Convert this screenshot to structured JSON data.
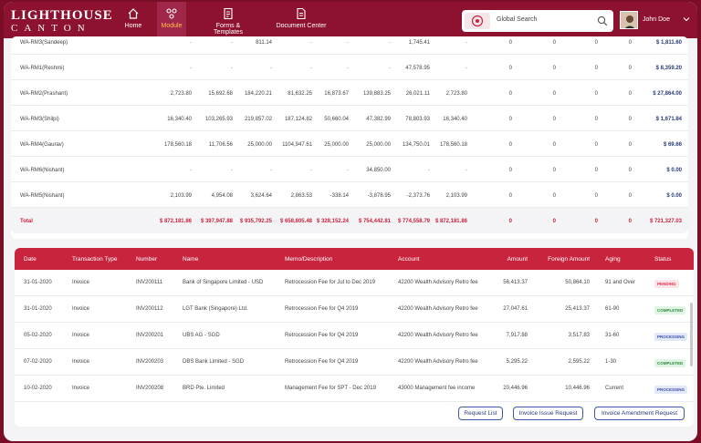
{
  "logo": {
    "line1": "LIGHTHOUSE",
    "line2": "CANTON"
  },
  "nav": [
    {
      "label": "Home",
      "icon": "home-icon"
    },
    {
      "label": "Module",
      "icon": "module-icon"
    },
    {
      "label": "Forms & Templates",
      "icon": "forms-icon"
    },
    {
      "label": "Document Center",
      "icon": "document-icon"
    }
  ],
  "search": {
    "placeholder": "Global Search"
  },
  "user": {
    "name": "John Doe"
  },
  "colors": {
    "brand": "#8c1230",
    "accent": "#c9243e",
    "link": "#2a3c7a"
  },
  "rm_table": {
    "rows": [
      {
        "name": "WA-RM3(Sandeep)",
        "cells": [
          "-",
          "-",
          "811.14",
          "-",
          "-",
          "-",
          "1,745.41",
          "-",
          "0",
          "0",
          "0",
          "0",
          "$ 1,811.60"
        ]
      },
      {
        "name": "WA-RM1(Reshmi)",
        "cells": [
          "-",
          "-",
          "-",
          "-",
          "-",
          "-",
          "47,578.95",
          "-",
          "0",
          "0",
          "0",
          "0",
          "$ 8,359.20"
        ]
      },
      {
        "name": "WA-RM2(Prashant)",
        "cells": [
          "2,723.80",
          "15,692.68",
          "184,220.21",
          "81,632.25",
          "16,873.67",
          "139,883.25",
          "26,021.11",
          "2,723.80",
          "0",
          "0",
          "0",
          "0",
          "$ 27,864.00"
        ]
      },
      {
        "name": "WA-RM3(Shilpi)",
        "cells": [
          "16,340.40",
          "103,265.93",
          "219,857.02",
          "187,124.82",
          "50,660.04",
          "47,382.99",
          "78,803.93",
          "16,340.40",
          "0",
          "0",
          "0",
          "0",
          "$ 1,671.84"
        ]
      },
      {
        "name": "WA-RM4(Gaurav)",
        "cells": [
          "178,560.18",
          "11,706.56",
          "25,000.00",
          "1104,947.61",
          "25,000.00",
          "25,000.00",
          "134,750.01",
          "178,560.18",
          "0",
          "0",
          "0",
          "0",
          "$ 69.66"
        ]
      },
      {
        "name": "WA-RM6(Nishant)",
        "cells": [
          "-",
          "-",
          "-",
          "-",
          "-",
          "34,850.00",
          "-",
          "-",
          "0",
          "0",
          "0",
          "0",
          "$ 0.00"
        ]
      },
      {
        "name": "WA-RM5(Nishant)",
        "cells": [
          "2,103.99",
          "4,954.08",
          "3,624.64",
          "2,863.53",
          "-338.14",
          "-3,878.95",
          "-2,373.76",
          "2,103.99",
          "0",
          "0",
          "0",
          "0",
          "$ 0.00"
        ]
      }
    ],
    "total": {
      "name": "Total",
      "cells": [
        "$ 872,181.86",
        "$ 397,947.88",
        "$ 935,792.25",
        "$ 658,805.48",
        "$ 328,152.24",
        "$ 754,442.81",
        "$ 774,558.79",
        "$ 872,181.86",
        "0",
        "0",
        "0",
        "0",
        "$ 721,327.03"
      ]
    }
  },
  "invoice_table": {
    "headers": [
      "Date",
      "Transaction Type",
      "Number",
      "Name",
      "Memo/Description",
      "Account",
      "Amount",
      "Foreign Amount",
      "Aging",
      "Status"
    ],
    "rows": [
      {
        "date": "31-01-2020",
        "type": "Invoice",
        "number": "INV200111",
        "name": "Bank of Singapore Limited - USD",
        "memo": "Retrocession Fee for Jul to Dec 2019",
        "account": "42200 Wealth Advisory Retro fee",
        "amount": "56,413.37",
        "foreign": "50,864.10",
        "aging": "91 and Over",
        "status": "PENDING",
        "status_color": "#d9324f",
        "status_bg": "#fde4e8"
      },
      {
        "date": "31-01-2020",
        "type": "Invoice",
        "number": "INV200112",
        "name": "LGT Bank (Singapore) Ltd.",
        "memo": "Retrocession Fee for Q4 2019",
        "account": "42200 Wealth Advisory Retro fee",
        "amount": "27,047.61",
        "foreign": "25,413.37",
        "aging": "61-90",
        "status": "COMPLETED",
        "status_color": "#2e8b3d",
        "status_bg": "#e0f4e3"
      },
      {
        "date": "05-02-2020",
        "type": "Invoice",
        "number": "INV200201",
        "name": "UBS AG - SGD",
        "memo": "Retrocession Fee for Q4 2019",
        "account": "42200 Wealth Advisory Retro fee",
        "amount": "7,917.88",
        "foreign": "3,517.83",
        "aging": "31-60",
        "status": "PROCESSING",
        "status_color": "#3b4fa8",
        "status_bg": "#e3e8f8"
      },
      {
        "date": "07-02-2020",
        "type": "Invoice",
        "number": "INV200203",
        "name": "DBS Bank Limited - SGD",
        "memo": "Retrocession Fee for Q4 2019",
        "account": "42200 Wealth Advisory Retro fee",
        "amount": "5,295.22",
        "foreign": "2,595.22",
        "aging": "1-30",
        "status": "COMPLETED",
        "status_color": "#2e8b3d",
        "status_bg": "#e0f4e3"
      },
      {
        "date": "10-02-2020",
        "type": "Invoice",
        "number": "INV200208",
        "name": "BRD Pte. Limited",
        "memo": "Management Fee for SPT - Dec 2019",
        "account": "43000 Management fee income",
        "amount": "20,446.96",
        "foreign": "10,446.96",
        "aging": "Current",
        "status": "PROCESSING",
        "status_color": "#3b4fa8",
        "status_bg": "#e3e8f8"
      }
    ]
  },
  "actions": {
    "request_list": "Request List",
    "invoice_issue": "Invoice Issue Request",
    "invoice_amend": "Invoice Amendment Request"
  }
}
